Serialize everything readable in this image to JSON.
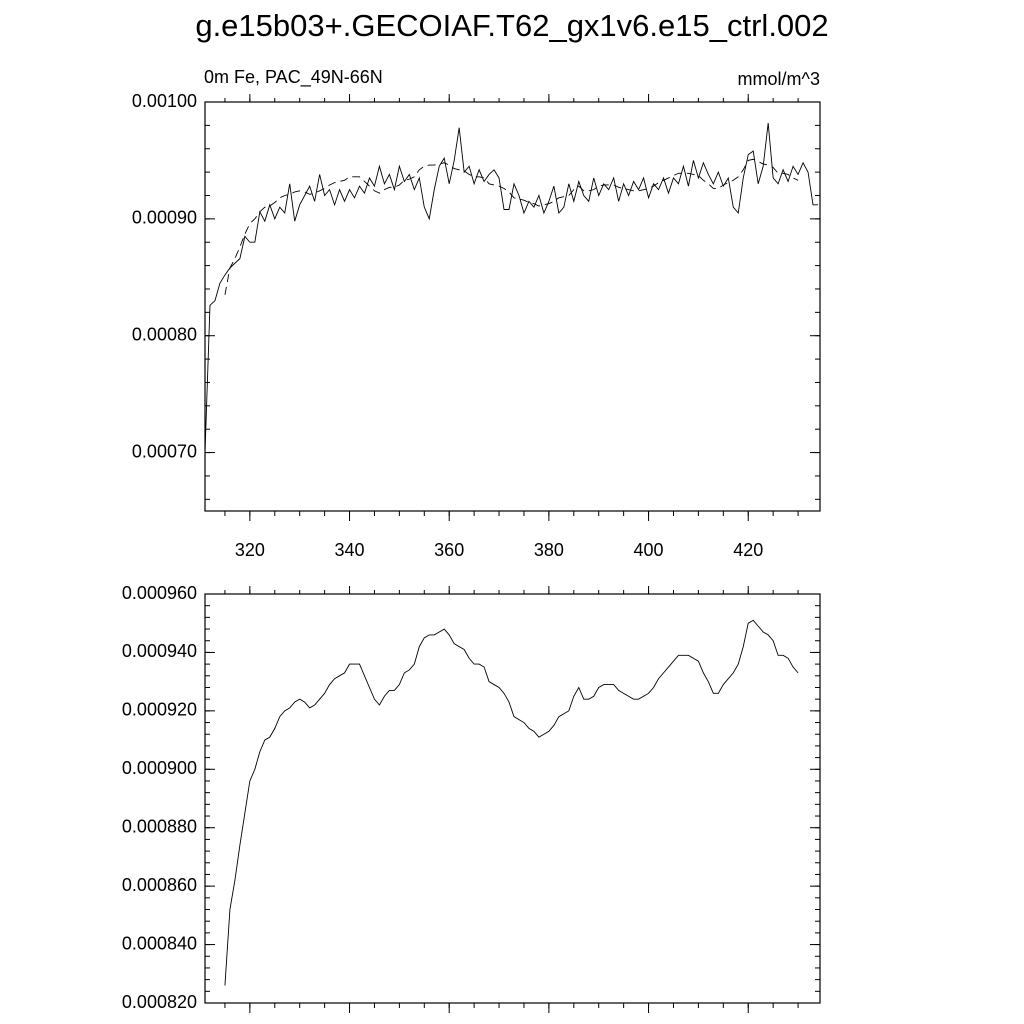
{
  "title": "g.e15b03+.GECOIAF.T62_gx1v6.e15_ctrl.002",
  "chart_data": [
    {
      "type": "line",
      "subtitle_left": "0m Fe, PAC_49N-66N",
      "subtitle_right": "mmol/m^3",
      "xlim": [
        311,
        434.4
      ],
      "ylim": [
        0.00065,
        0.001
      ],
      "xticks": [
        320,
        340,
        360,
        380,
        400,
        420
      ],
      "yticks": [
        {
          "value": 0.0007,
          "label": "0.00070"
        },
        {
          "value": 0.0008,
          "label": "0.00080"
        },
        {
          "value": 0.0009,
          "label": "0.00090"
        },
        {
          "value": 0.001,
          "label": "0.00100"
        }
      ],
      "x": [
        311,
        312,
        313,
        314,
        315,
        316,
        317,
        318,
        319,
        320,
        321,
        322,
        323,
        324,
        325,
        326,
        327,
        328,
        329,
        330,
        331,
        332,
        333,
        334,
        335,
        336,
        337,
        338,
        339,
        340,
        341,
        342,
        343,
        344,
        345,
        346,
        347,
        348,
        349,
        350,
        351,
        352,
        353,
        354,
        355,
        356,
        357,
        358,
        359,
        360,
        361,
        362,
        363,
        364,
        365,
        366,
        367,
        368,
        369,
        370,
        371,
        372,
        373,
        374,
        375,
        376,
        377,
        378,
        379,
        380,
        381,
        382,
        383,
        384,
        385,
        386,
        387,
        388,
        389,
        390,
        391,
        392,
        393,
        394,
        395,
        396,
        397,
        398,
        399,
        400,
        401,
        402,
        403,
        404,
        405,
        406,
        407,
        408,
        409,
        410,
        411,
        412,
        413,
        414,
        415,
        416,
        417,
        418,
        419,
        420,
        421,
        422,
        423,
        424,
        425,
        426,
        427,
        428,
        429,
        430,
        431,
        432,
        433,
        434
      ],
      "series": [
        {
          "color": "#000000",
          "line_style": "solid",
          "values": [
            0.0007,
            0.000826,
            0.00083,
            0.000845,
            0.000852,
            0.000858,
            0.000862,
            0.000866,
            0.000885,
            0.00088,
            0.00088,
            0.000906,
            0.000898,
            0.000912,
            0.0009,
            0.00091,
            0.000905,
            0.00093,
            0.000898,
            0.000912,
            0.00092,
            0.000928,
            0.000915,
            0.000938,
            0.00092,
            0.000925,
            0.000912,
            0.000925,
            0.000915,
            0.000925,
            0.000918,
            0.000928,
            0.000922,
            0.000935,
            0.000928,
            0.000945,
            0.00093,
            0.000938,
            0.000925,
            0.000945,
            0.000932,
            0.000938,
            0.000925,
            0.000935,
            0.00091,
            0.0009,
            0.000925,
            0.000945,
            0.000952,
            0.00093,
            0.00095,
            0.000978,
            0.00094,
            0.000945,
            0.00093,
            0.000942,
            0.000932,
            0.000938,
            0.000942,
            0.000935,
            0.000908,
            0.000908,
            0.00093,
            0.00092,
            0.000905,
            0.000915,
            0.00091,
            0.00092,
            0.000905,
            0.000915,
            0.000928,
            0.000905,
            0.00091,
            0.00093,
            0.000915,
            0.000932,
            0.00092,
            0.000915,
            0.000935,
            0.00092,
            0.00093,
            0.000925,
            0.000935,
            0.000915,
            0.00093,
            0.00092,
            0.000932,
            0.000925,
            0.000935,
            0.000918,
            0.00093,
            0.000925,
            0.000935,
            0.000922,
            0.000935,
            0.00093,
            0.000945,
            0.000928,
            0.00095,
            0.000935,
            0.000948,
            0.000938,
            0.00093,
            0.00094,
            0.000928,
            0.000935,
            0.00091,
            0.000905,
            0.000935,
            0.000955,
            0.000958,
            0.00093,
            0.000945,
            0.000982,
            0.000935,
            0.00093,
            0.000942,
            0.000932,
            0.000945,
            0.000938,
            0.000948,
            0.00094,
            0.000912,
            0.000912
          ]
        },
        {
          "color": "#000000",
          "line_style": "dashed",
          "values": [
            null,
            null,
            null,
            null,
            0.000835,
            0.000858,
            0.000866,
            0.000876,
            0.000887,
            0.000896,
            0.0009,
            0.000906,
            0.00091,
            0.000911,
            0.000914,
            0.000918,
            0.00092,
            0.000921,
            0.000923,
            0.000924,
            0.000923,
            0.000921,
            0.000922,
            0.000924,
            0.000926,
            0.000929,
            0.000931,
            0.000932,
            0.000933,
            0.000936,
            0.000936,
            0.000936,
            0.000932,
            0.000928,
            0.000924,
            0.000922,
            0.000925,
            0.000927,
            0.000927,
            0.000929,
            0.000933,
            0.000934,
            0.000936,
            0.000942,
            0.000945,
            0.000946,
            0.000946,
            0.000947,
            0.000948,
            0.000946,
            0.000943,
            0.000942,
            0.000941,
            0.000938,
            0.000936,
            0.000936,
            0.000935,
            0.00093,
            0.000929,
            0.000928,
            0.000926,
            0.000923,
            0.000918,
            0.000917,
            0.000916,
            0.000914,
            0.000913,
            0.000911,
            0.000912,
            0.000913,
            0.000915,
            0.000918,
            0.000919,
            0.00092,
            0.000925,
            0.000928,
            0.000924,
            0.000924,
            0.000925,
            0.000928,
            0.000929,
            0.000929,
            0.000929,
            0.000927,
            0.000926,
            0.000925,
            0.000924,
            0.000924,
            0.000925,
            0.000926,
            0.000928,
            0.000931,
            0.000933,
            0.000935,
            0.000937,
            0.000939,
            0.000939,
            0.000939,
            0.000938,
            0.000937,
            0.000933,
            0.00093,
            0.000926,
            0.000926,
            0.000929,
            0.000931,
            0.000933,
            0.000936,
            0.000942,
            0.00095,
            0.000951,
            0.000949,
            0.000947,
            0.000946,
            0.000944,
            0.000939,
            0.000939,
            0.000938,
            0.000935,
            0.000933,
            null,
            null,
            null,
            null
          ]
        }
      ]
    },
    {
      "type": "line",
      "xlim": [
        311,
        434.4
      ],
      "ylim": [
        0.00082,
        0.00096
      ],
      "xticks": [
        320,
        340,
        360,
        380,
        400,
        420
      ],
      "xtick_labels": false,
      "yticks": [
        {
          "value": 0.00082,
          "label": "0.000820"
        },
        {
          "value": 0.00084,
          "label": "0.000840"
        },
        {
          "value": 0.00086,
          "label": "0.000860"
        },
        {
          "value": 0.00088,
          "label": "0.000880"
        },
        {
          "value": 0.0009,
          "label": "0.000900"
        },
        {
          "value": 0.00092,
          "label": "0.000920"
        },
        {
          "value": 0.00094,
          "label": "0.000940"
        },
        {
          "value": 0.00096,
          "label": "0.000960"
        }
      ],
      "x": [
        315,
        316,
        317,
        318,
        319,
        320,
        321,
        322,
        323,
        324,
        325,
        326,
        327,
        328,
        329,
        330,
        331,
        332,
        333,
        334,
        335,
        336,
        337,
        338,
        339,
        340,
        341,
        342,
        343,
        344,
        345,
        346,
        347,
        348,
        349,
        350,
        351,
        352,
        353,
        354,
        355,
        356,
        357,
        358,
        359,
        360,
        361,
        362,
        363,
        364,
        365,
        366,
        367,
        368,
        369,
        370,
        371,
        372,
        373,
        374,
        375,
        376,
        377,
        378,
        379,
        380,
        381,
        382,
        383,
        384,
        385,
        386,
        387,
        388,
        389,
        390,
        391,
        392,
        393,
        394,
        395,
        396,
        397,
        398,
        399,
        400,
        401,
        402,
        403,
        404,
        405,
        406,
        407,
        408,
        409,
        410,
        411,
        412,
        413,
        414,
        415,
        416,
        417,
        418,
        419,
        420,
        421,
        422,
        423,
        424,
        425,
        426,
        427,
        428,
        429,
        430
      ],
      "series": [
        {
          "color": "#000000",
          "line_style": "solid",
          "values": [
            0.000826,
            0.000852,
            0.000862,
            0.000874,
            0.000885,
            0.000896,
            0.0009,
            0.000906,
            0.00091,
            0.000911,
            0.000914,
            0.000918,
            0.00092,
            0.000921,
            0.000923,
            0.000924,
            0.000923,
            0.000921,
            0.000922,
            0.000924,
            0.000926,
            0.000929,
            0.000931,
            0.000932,
            0.000933,
            0.000936,
            0.000936,
            0.000936,
            0.000932,
            0.000928,
            0.000924,
            0.000922,
            0.000925,
            0.000927,
            0.000927,
            0.000929,
            0.000933,
            0.000934,
            0.000936,
            0.000942,
            0.000945,
            0.000946,
            0.000946,
            0.000947,
            0.000948,
            0.000946,
            0.000943,
            0.000942,
            0.000941,
            0.000938,
            0.000936,
            0.000936,
            0.000935,
            0.00093,
            0.000929,
            0.000928,
            0.000926,
            0.000923,
            0.000918,
            0.000917,
            0.000916,
            0.000914,
            0.000913,
            0.000911,
            0.000912,
            0.000913,
            0.000915,
            0.000918,
            0.000919,
            0.00092,
            0.000925,
            0.000928,
            0.000924,
            0.000924,
            0.000925,
            0.000928,
            0.000929,
            0.000929,
            0.000929,
            0.000927,
            0.000926,
            0.000925,
            0.000924,
            0.000924,
            0.000925,
            0.000926,
            0.000928,
            0.000931,
            0.000933,
            0.000935,
            0.000937,
            0.000939,
            0.000939,
            0.000939,
            0.000938,
            0.000937,
            0.000933,
            0.00093,
            0.000926,
            0.000926,
            0.000929,
            0.000931,
            0.000933,
            0.000936,
            0.000942,
            0.00095,
            0.000951,
            0.000949,
            0.000947,
            0.000946,
            0.000944,
            0.000939,
            0.000939,
            0.000938,
            0.000935,
            0.000933
          ]
        }
      ]
    }
  ]
}
